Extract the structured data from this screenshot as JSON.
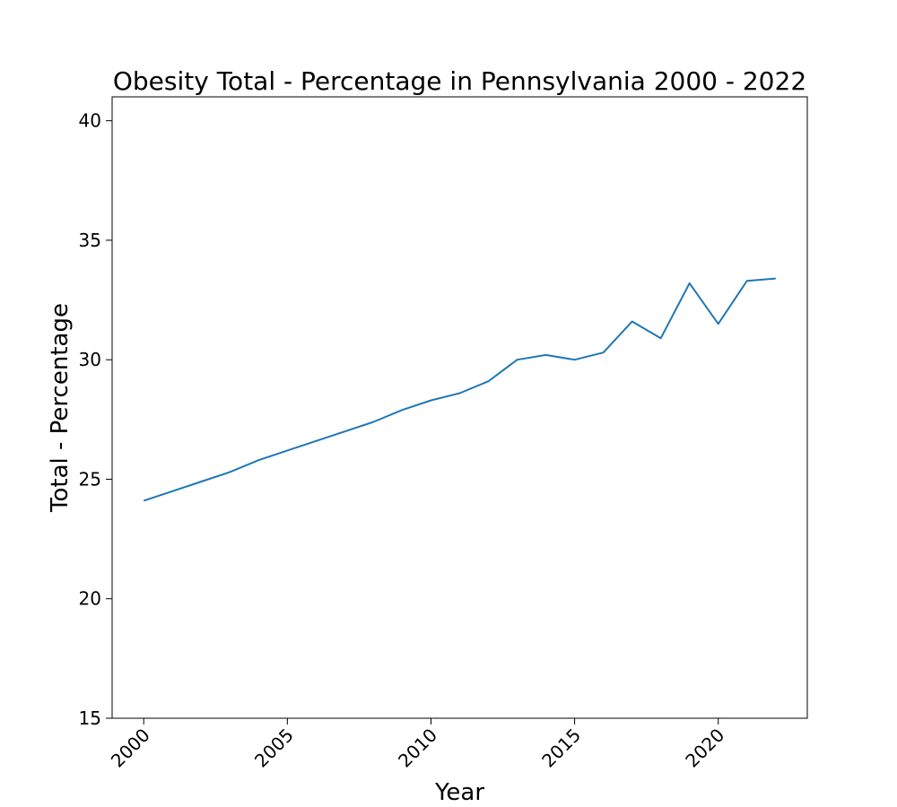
{
  "chart_data": {
    "type": "line",
    "title": "Obesity Total - Percentage in Pennsylvania 2000 - 2022",
    "xlabel": "Year",
    "ylabel": "Total - Percentage",
    "xlim": [
      1998.9,
      2023.1
    ],
    "ylim": [
      15,
      41
    ],
    "xticks": [
      2000,
      2005,
      2010,
      2015,
      2020
    ],
    "yticks": [
      15,
      20,
      25,
      30,
      35,
      40
    ],
    "grid": false,
    "line_color": "#1f77b4",
    "x": [
      2000,
      2001,
      2002,
      2003,
      2004,
      2005,
      2006,
      2007,
      2008,
      2009,
      2010,
      2011,
      2012,
      2013,
      2014,
      2015,
      2016,
      2017,
      2018,
      2019,
      2020,
      2021,
      2022
    ],
    "series": [
      {
        "values": [
          24.1,
          24.5,
          24.9,
          25.3,
          25.8,
          26.2,
          26.6,
          27.0,
          27.4,
          27.9,
          28.3,
          28.6,
          29.1,
          30.0,
          30.2,
          30.0,
          30.3,
          31.6,
          30.9,
          33.2,
          31.5,
          33.3,
          33.4
        ]
      }
    ]
  }
}
